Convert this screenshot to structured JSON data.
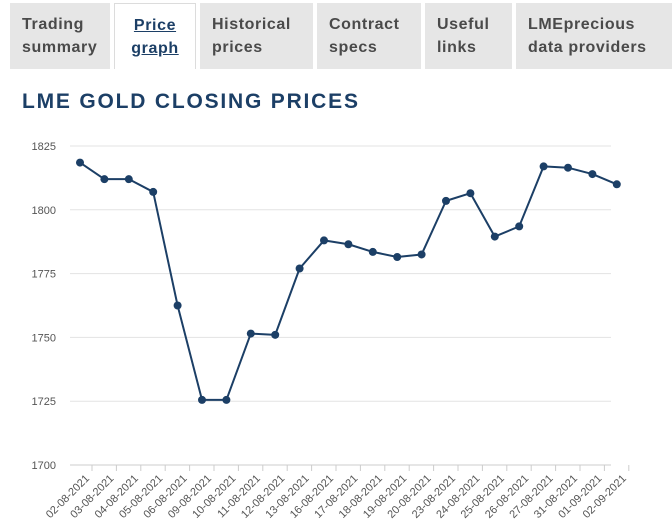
{
  "tabs": [
    {
      "line1": "Trading",
      "line2": "summary",
      "active": false
    },
    {
      "line1": "Price",
      "line2": "graph",
      "active": true
    },
    {
      "line1": "Historical",
      "line2": "prices",
      "active": false
    },
    {
      "line1": "Contract",
      "line2": "specs",
      "active": false
    },
    {
      "line1": "Useful",
      "line2": "links",
      "active": false
    },
    {
      "line1": "LMEprecious",
      "line2": "data providers",
      "active": false
    }
  ],
  "heading": "LME GOLD CLOSING PRICES",
  "colors": {
    "line": "#1c3f66",
    "grid": "#e3e3e3",
    "axis": "#cccccc",
    "tab_bg": "#e6e6e6"
  },
  "chart_data": {
    "type": "line",
    "title": "LME GOLD CLOSING PRICES",
    "xlabel": "",
    "ylabel": "",
    "ylim": [
      1700,
      1825
    ],
    "yticks": [
      1700,
      1725,
      1750,
      1775,
      1800,
      1825
    ],
    "grid": true,
    "x": [
      "02-08-2021",
      "03-08-2021",
      "04-08-2021",
      "05-08-2021",
      "06-08-2021",
      "09-08-2021",
      "10-08-2021",
      "11-08-2021",
      "12-08-2021",
      "13-08-2021",
      "16-08-2021",
      "17-08-2021",
      "18-08-2021",
      "19-08-2021",
      "20-08-2021",
      "23-08-2021",
      "24-08-2021",
      "25-08-2021",
      "26-08-2021",
      "27-08-2021",
      "31-08-2021",
      "01-09-2021",
      "02-09-2021"
    ],
    "series": [
      {
        "name": "",
        "values": [
          1818.5,
          1812.0,
          1812.0,
          1807.0,
          1762.5,
          1725.5,
          1725.5,
          1751.5,
          1751.0,
          1777.0,
          1788.0,
          1786.5,
          1783.5,
          1781.5,
          1782.5,
          1803.5,
          1806.5,
          1789.5,
          1793.5,
          1817.0,
          1816.5,
          1814.0,
          1810.0
        ]
      }
    ]
  }
}
